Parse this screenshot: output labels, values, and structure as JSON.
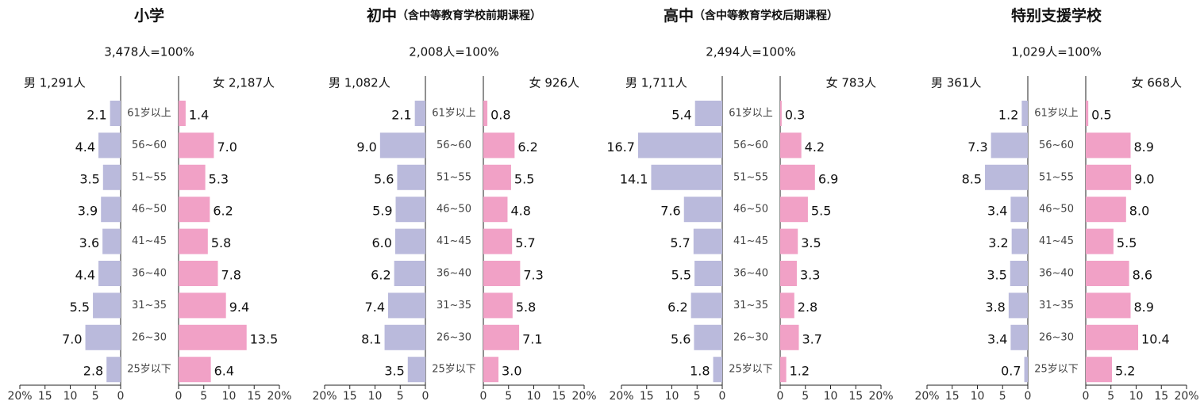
{
  "chart_data": [
    {
      "type": "pyramid",
      "title": "小学",
      "subtitle": "3,478人=100%",
      "categories": [
        "61岁以上",
        "56~60",
        "51~55",
        "46~50",
        "41~45",
        "36~40",
        "31~35",
        "26~30",
        "25岁以下"
      ],
      "series": [
        {
          "name": "男 1,291人",
          "color": "#babadc",
          "values": [
            2.1,
            4.4,
            3.5,
            3.9,
            3.6,
            4.4,
            5.5,
            7.0,
            2.8
          ],
          "value_labels": [
            "2.1",
            "4.4",
            "3.5",
            "3.9",
            "3.6",
            "4.4",
            "5.5",
            "7.0",
            "2.8"
          ]
        },
        {
          "name": "女 2,187人",
          "color": "#f1a1c6",
          "values": [
            1.4,
            7.0,
            5.3,
            6.2,
            5.8,
            7.8,
            9.4,
            13.5,
            6.4
          ],
          "value_labels": [
            "1.4",
            "7.0",
            "5.3",
            "6.2",
            "5.8",
            "7.8",
            "9.4",
            "13.5",
            "6.4"
          ]
        }
      ],
      "xlim": [
        0,
        20
      ],
      "xticks": [
        0,
        5,
        10,
        15,
        {
          "value": 20,
          "label": "20%"
        }
      ]
    },
    {
      "type": "pyramid",
      "title": "初中",
      "title_note": "（含中等教育学校前期课程）",
      "subtitle": "2,008人=100%",
      "categories": [
        "61岁以上",
        "56~60",
        "51~55",
        "46~50",
        "41~45",
        "36~40",
        "31~35",
        "26~30",
        "25岁以下"
      ],
      "series": [
        {
          "name": "男 1,082人",
          "color": "#babadc",
          "values": [
            2.1,
            9.0,
            5.6,
            5.9,
            6.0,
            6.2,
            7.4,
            8.1,
            3.5
          ],
          "value_labels": [
            "2.1",
            "9.0",
            "5.6",
            "5.9",
            "6.0",
            "6.2",
            "7.4",
            "8.1",
            "3.5"
          ]
        },
        {
          "name": "女 926人",
          "color": "#f1a1c6",
          "values": [
            0.8,
            6.2,
            5.5,
            4.8,
            5.7,
            7.3,
            5.8,
            7.1,
            3.0
          ],
          "value_labels": [
            "0.8",
            "6.2",
            "5.5",
            "4.8",
            "5.7",
            "7.3",
            "5.8",
            "7.1",
            "3.0"
          ]
        }
      ],
      "xlim": [
        0,
        20
      ],
      "xticks": [
        0,
        5,
        10,
        15,
        {
          "value": 20,
          "label": "20%"
        }
      ]
    },
    {
      "type": "pyramid",
      "title": "高中",
      "title_note": "（含中等教育学校后期课程）",
      "subtitle": "2,494人=100%",
      "categories": [
        "61岁以上",
        "56~60",
        "51~55",
        "46~50",
        "41~45",
        "36~40",
        "31~35",
        "26~30",
        "25岁以下"
      ],
      "series": [
        {
          "name": "男 1,711人",
          "color": "#babadc",
          "values": [
            5.4,
            16.7,
            14.1,
            7.6,
            5.7,
            5.5,
            6.2,
            5.6,
            1.8
          ],
          "value_labels": [
            "5.4",
            "16.7",
            "14.1",
            "7.6",
            "5.7",
            "5.5",
            "6.2",
            "5.6",
            "1.8"
          ]
        },
        {
          "name": "女 783人",
          "color": "#f1a1c6",
          "values": [
            0.3,
            4.2,
            6.9,
            5.5,
            3.5,
            3.3,
            2.8,
            3.7,
            1.2
          ],
          "value_labels": [
            "0.3",
            "4.2",
            "6.9",
            "5.5",
            "3.5",
            "3.3",
            "2.8",
            "3.7",
            "1.2"
          ]
        }
      ],
      "xlim": [
        0,
        20
      ],
      "xticks": [
        0,
        5,
        10,
        15,
        {
          "value": 20,
          "label": "20%"
        }
      ]
    },
    {
      "type": "pyramid",
      "title": "特别支援学校",
      "subtitle": "1,029人=100%",
      "categories": [
        "61岁以上",
        "56~60",
        "51~55",
        "46~50",
        "41~45",
        "36~40",
        "31~35",
        "26~30",
        "25岁以下"
      ],
      "series": [
        {
          "name": "男 361人",
          "color": "#babadc",
          "values": [
            1.2,
            7.3,
            8.5,
            3.4,
            3.2,
            3.5,
            3.8,
            3.4,
            0.7
          ],
          "value_labels": [
            "1.2",
            "7.3",
            "8.5",
            "3.4",
            "3.2",
            "3.5",
            "3.8",
            "3.4",
            "0.7"
          ]
        },
        {
          "name": "女 668人",
          "color": "#f1a1c6",
          "values": [
            0.5,
            8.9,
            9.0,
            8.0,
            5.5,
            8.6,
            8.9,
            10.4,
            5.2
          ],
          "value_labels": [
            "0.5",
            "8.9",
            "9.0",
            "8.0",
            "5.5",
            "8.6",
            "8.9",
            "10.4",
            "5.2"
          ]
        }
      ],
      "xlim": [
        0,
        20
      ],
      "xticks": [
        0,
        5,
        10,
        15,
        {
          "value": 20,
          "label": "20%"
        }
      ]
    }
  ]
}
